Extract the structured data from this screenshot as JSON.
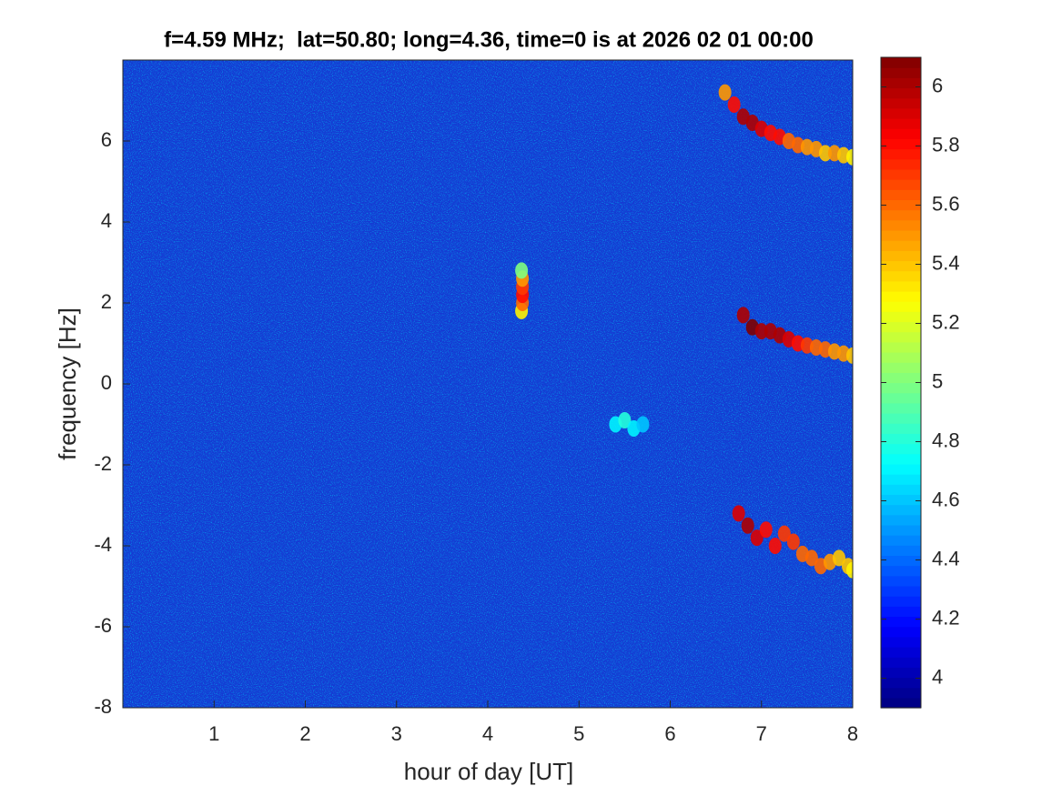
{
  "chart_data": {
    "type": "spectrogram",
    "title": "f=4.59 MHz;  lat=50.80; long=4.36, time=0 is at 2026 02 01 00:00",
    "x_label": "hour of day [UT]",
    "y_label": "frequency [Hz]",
    "xlim": [
      0,
      8
    ],
    "xticks": [
      1,
      2,
      3,
      4,
      5,
      6,
      7,
      8
    ],
    "ylim": [
      -8,
      8
    ],
    "yticks": [
      -8,
      -6,
      -4,
      -2,
      0,
      2,
      4,
      6
    ],
    "clim": [
      3.9,
      6.1
    ],
    "cticks": [
      4,
      4.2,
      4.4,
      4.6,
      4.8,
      5,
      5.2,
      5.4,
      5.6,
      5.8,
      6
    ],
    "colormap": "jet",
    "series": [
      {
        "x": [
          6.6,
          6.7,
          6.8,
          6.9,
          7.0,
          7.1,
          7.2,
          7.3,
          7.4,
          7.5,
          7.6,
          7.7,
          7.8,
          7.9,
          8.0
        ],
        "y": [
          7.2,
          6.9,
          6.6,
          6.45,
          6.3,
          6.2,
          6.1,
          6.0,
          5.9,
          5.85,
          5.8,
          5.7,
          5.7,
          5.65,
          5.6
        ],
        "z": [
          5.5,
          5.8,
          6.0,
          6.0,
          5.9,
          5.8,
          5.8,
          5.6,
          5.6,
          5.5,
          5.5,
          5.4,
          5.5,
          5.4,
          5.3
        ]
      },
      {
        "x": [
          6.8,
          6.9,
          7.0,
          7.1,
          7.2,
          7.3,
          7.4,
          7.5,
          7.6,
          7.7,
          7.8,
          7.9,
          8.0
        ],
        "y": [
          1.7,
          1.4,
          1.3,
          1.3,
          1.2,
          1.1,
          1.0,
          0.95,
          0.9,
          0.85,
          0.8,
          0.75,
          0.7
        ],
        "z": [
          6.0,
          6.1,
          6.0,
          6.0,
          6.0,
          5.9,
          5.8,
          5.7,
          5.6,
          5.6,
          5.5,
          5.5,
          5.4
        ]
      },
      {
        "x": [
          6.75,
          6.85,
          6.95,
          7.05,
          7.15,
          7.25,
          7.35,
          7.45,
          7.55,
          7.65,
          7.75,
          7.85,
          7.95,
          8.0
        ],
        "y": [
          -3.2,
          -3.5,
          -3.8,
          -3.6,
          -4.0,
          -3.7,
          -3.9,
          -4.2,
          -4.3,
          -4.5,
          -4.4,
          -4.3,
          -4.5,
          -4.6
        ],
        "z": [
          5.9,
          6.0,
          5.9,
          5.8,
          5.8,
          5.7,
          5.7,
          5.6,
          5.6,
          5.6,
          5.5,
          5.4,
          5.4,
          5.3
        ]
      },
      {
        "x": [
          4.37,
          4.38,
          4.38,
          4.38,
          4.38,
          4.37
        ],
        "y": [
          1.8,
          2.0,
          2.2,
          2.4,
          2.6,
          2.8
        ],
        "z": [
          5.3,
          5.6,
          5.8,
          5.7,
          5.5,
          5.0
        ]
      },
      {
        "x": [
          5.4,
          5.5,
          5.6,
          5.7
        ],
        "y": [
          -1.0,
          -0.9,
          -1.1,
          -1.0
        ],
        "z": [
          4.7,
          4.8,
          4.7,
          4.6
        ]
      }
    ]
  }
}
